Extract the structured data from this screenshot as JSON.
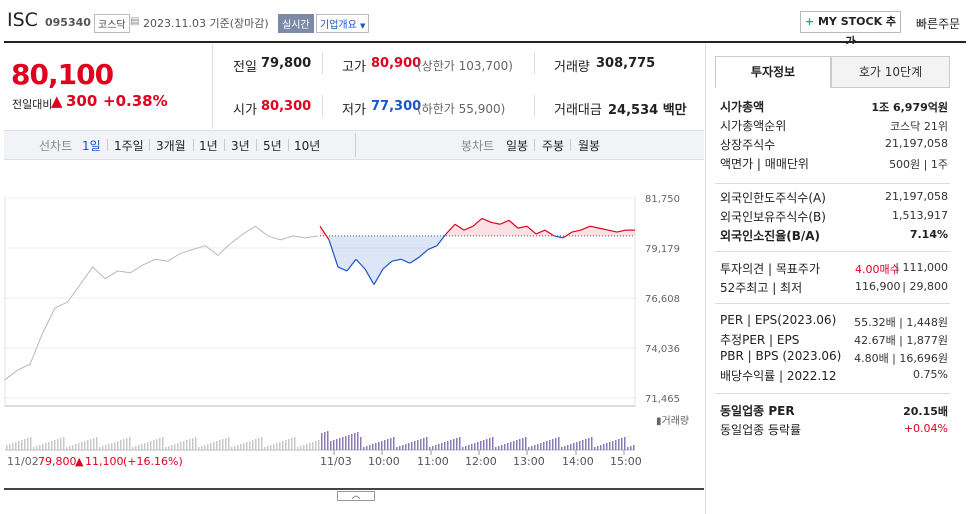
{
  "header": {
    "stock_name": "ISC",
    "stock_code": "095340",
    "market": "코스닥",
    "date_text": "2023.11.03 기준(장마감)",
    "realtime_badge": "실시간",
    "company_overview": "기업개요",
    "mystock_button": "MY STOCK 추가",
    "quick_order": "빠른주문"
  },
  "price": {
    "current": "80,100",
    "change_label": "전일대비",
    "change": "300",
    "change_pct": "+0.38%"
  },
  "summary": {
    "prev_close_label": "전일",
    "prev_close": "79,800",
    "high_label": "고가",
    "high": "80,900",
    "upper_limit": "(상한가 103,700)",
    "volume_label": "거래량",
    "volume": "308,775",
    "open_label": "시가",
    "open": "80,300",
    "low_label": "저가",
    "low": "77,300",
    "lower_limit": "(하한가 55,900)",
    "amount_label": "거래대금",
    "amount": "24,534 백만"
  },
  "periods": {
    "line_chart_label": "선차트",
    "line_tabs": [
      "1일",
      "1주일",
      "3개월",
      "1년",
      "3년",
      "5년",
      "10년"
    ],
    "candle_chart_label": "봉차트",
    "candle_tabs": [
      "일봉",
      "주봉",
      "월봉"
    ],
    "selected": "1일"
  },
  "chart_data": {
    "type": "line",
    "y_ticks": [
      "81,750",
      "79,179",
      "76,608",
      "74,036",
      "71,465"
    ],
    "ylim": [
      71465,
      81750
    ],
    "reference_price": 79800,
    "x_ticks": [
      "11/03",
      "10:00",
      "11:00",
      "12:00",
      "13:00",
      "14:00",
      "15:00"
    ],
    "volume_label": "거래량",
    "prev_day_label": "11/02",
    "prev_day_close": "79,800",
    "prev_day_change": "11,100",
    "prev_day_change_pct": "(+16.16%)",
    "series": [
      {
        "name": "11/02",
        "values": [
          72400,
          72900,
          73200,
          74800,
          76100,
          76400,
          77300,
          78200,
          77600,
          78000,
          77900,
          78300,
          78600,
          78500,
          78900,
          79100,
          79300,
          78800,
          79400,
          79900,
          80300,
          79800,
          79600,
          79800,
          79700,
          79800
        ]
      },
      {
        "name": "11/03",
        "values": [
          80300,
          79600,
          78200,
          78000,
          78600,
          78100,
          77300,
          78100,
          78500,
          78600,
          78400,
          78700,
          79100,
          79300,
          79900,
          80400,
          80100,
          80300,
          80700,
          80500,
          80400,
          80600,
          80200,
          80300,
          79900,
          80100,
          79800,
          79700,
          80000,
          80100,
          80300,
          80200,
          80100,
          80000,
          80100,
          80100
        ]
      }
    ]
  },
  "right": {
    "tab_invest": "투자정보",
    "tab_orderbook": "호가 10단계",
    "rows1": [
      {
        "label": "시가총액",
        "value": "1조 6,979억원",
        "bold": true
      },
      {
        "label": "시가총액순위",
        "value": "코스닥 21위"
      },
      {
        "label": "상장주식수",
        "value": "21,197,058"
      },
      {
        "label": "액면가 | 매매단위",
        "value": "500원 | 1주"
      }
    ],
    "rows2": [
      {
        "label": "외국인한도주식수(A)",
        "value": "21,197,058"
      },
      {
        "label": "외국인보유주식수(B)",
        "value": "1,513,917"
      },
      {
        "label": "외국인소진율(B/A)",
        "value": "7.14%",
        "bold": true
      }
    ],
    "rows3": [
      {
        "label": "투자의견 | 목표주가",
        "value_a": "4.00매수",
        "value_b": "| 111,000"
      },
      {
        "label": "52주최고 | 최저",
        "value_a": "116,900",
        "value_b": "| 29,800"
      }
    ],
    "rows4": [
      {
        "label": "PER | EPS(2023.06)",
        "value": "55.32배 | 1,448원"
      },
      {
        "label": "추정PER | EPS",
        "value": "42.67배 | 1,877원"
      },
      {
        "label": "PBR | BPS (2023.06)",
        "value": "4.80배 | 16,696원"
      },
      {
        "label": "배당수익률 | 2022.12",
        "value": "0.75%"
      }
    ],
    "rows5": [
      {
        "label": "동일업종 PER",
        "value": "20.15배",
        "bold": true
      },
      {
        "label": "동일업종 등락률",
        "value": "+0.04%"
      }
    ]
  }
}
